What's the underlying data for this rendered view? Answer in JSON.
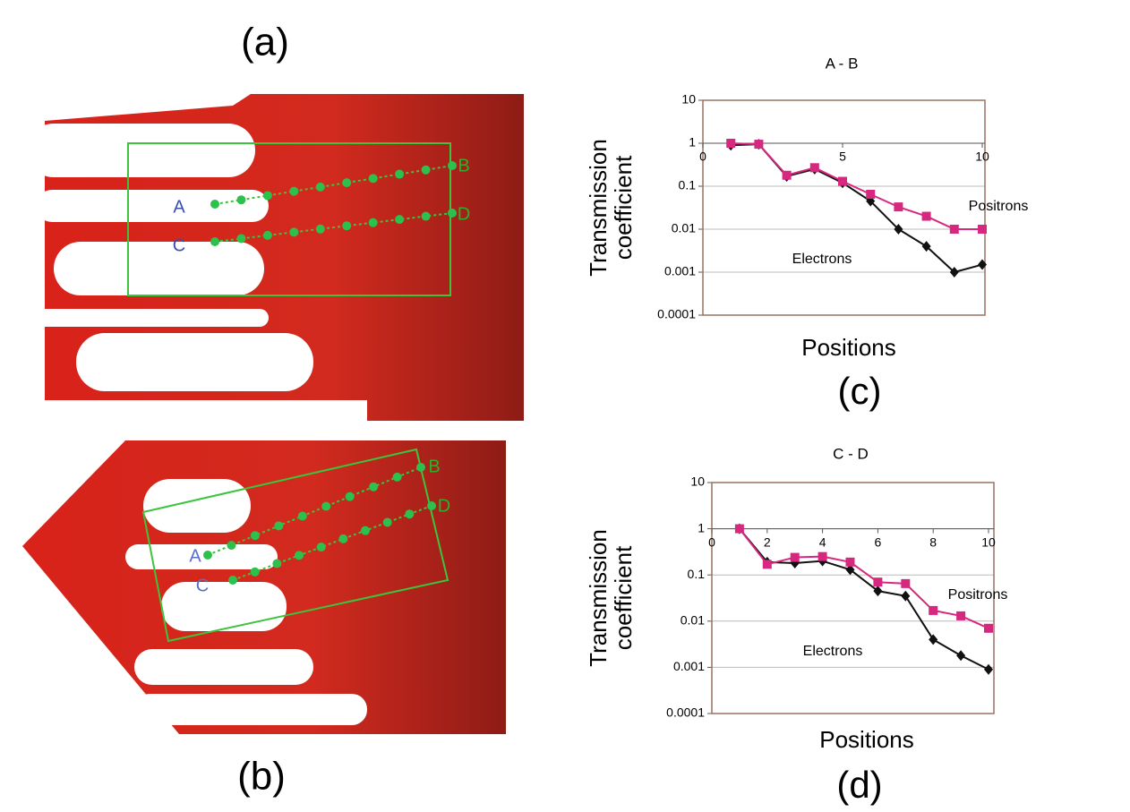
{
  "panels": [
    {
      "label": "(a)",
      "points": [
        "A",
        "B",
        "C",
        "D"
      ]
    },
    {
      "label": "(b)",
      "points": [
        "A",
        "B",
        "C",
        "D"
      ]
    }
  ],
  "chart_data": [
    {
      "type": "line",
      "title": "A - B",
      "panel_label": "(c)",
      "x_label": "Positions",
      "y_label": [
        "Transmission",
        "coefficient"
      ],
      "x": [
        1,
        2,
        3,
        4,
        5,
        6,
        7,
        8,
        9,
        10
      ],
      "xlim": [
        0,
        10
      ],
      "xticks": [
        0,
        5,
        10
      ],
      "ylim": [
        0.0001,
        10
      ],
      "yticks": [
        0.0001,
        0.001,
        0.01,
        0.1,
        1,
        10
      ],
      "log_y": true,
      "grid": true,
      "x_axis_crossing": 1,
      "series": [
        {
          "name": "Electrons",
          "color": "#111111",
          "marker": "diamond",
          "values": [
            0.9,
            0.95,
            0.17,
            0.25,
            0.12,
            0.045,
            0.01,
            0.004,
            0.001,
            0.0015
          ]
        },
        {
          "name": "Positrons",
          "color": "#d6287f",
          "marker": "square",
          "values": [
            1,
            0.95,
            0.18,
            0.27,
            0.13,
            0.065,
            0.033,
            0.02,
            0.01,
            0.01
          ]
        }
      ]
    },
    {
      "type": "line",
      "title": "C - D",
      "panel_label": "(d)",
      "x_label": "Positions",
      "y_label": [
        "Transmission",
        "coefficient"
      ],
      "x": [
        1,
        2,
        3,
        4,
        5,
        6,
        7,
        8,
        9,
        10
      ],
      "xlim": [
        0,
        10
      ],
      "xticks": [
        0,
        2,
        4,
        6,
        8,
        10
      ],
      "ylim": [
        0.0001,
        10
      ],
      "yticks": [
        0.0001,
        0.001,
        0.01,
        0.1,
        1,
        10
      ],
      "log_y": true,
      "grid": true,
      "x_axis_crossing": 1,
      "series": [
        {
          "name": "Electrons",
          "color": "#111111",
          "marker": "diamond",
          "values": [
            1,
            0.19,
            0.18,
            0.2,
            0.13,
            0.045,
            0.035,
            0.004,
            0.0018,
            0.0009
          ]
        },
        {
          "name": "Positrons",
          "color": "#d6287f",
          "marker": "square",
          "values": [
            1,
            0.17,
            0.24,
            0.25,
            0.19,
            0.07,
            0.065,
            0.017,
            0.013,
            0.007
          ]
        }
      ]
    }
  ]
}
